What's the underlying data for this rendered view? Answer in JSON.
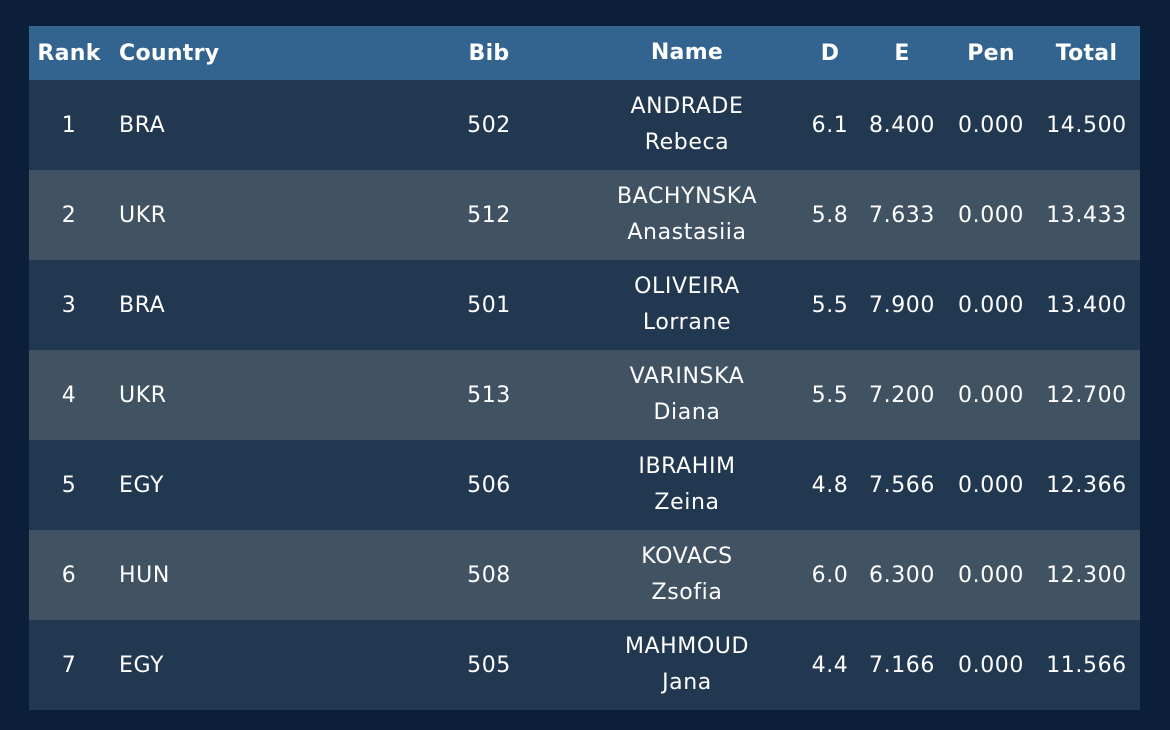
{
  "headers": {
    "rank": "Rank",
    "country": "Country",
    "bib": "Bib",
    "name": "Name",
    "d": "D",
    "e": "E",
    "pen": "Pen",
    "total": "Total"
  },
  "rows": [
    {
      "rank": "1",
      "country": "BRA",
      "bib": "502",
      "surname": "ANDRADE",
      "first": "Rebeca",
      "d": "6.1",
      "e": "8.400",
      "pen": "0.000",
      "total": "14.500"
    },
    {
      "rank": "2",
      "country": "UKR",
      "bib": "512",
      "surname": "BACHYNSKA",
      "first": "Anastasiia",
      "d": "5.8",
      "e": "7.633",
      "pen": "0.000",
      "total": "13.433"
    },
    {
      "rank": "3",
      "country": "BRA",
      "bib": "501",
      "surname": "OLIVEIRA",
      "first": "Lorrane",
      "d": "5.5",
      "e": "7.900",
      "pen": "0.000",
      "total": "13.400"
    },
    {
      "rank": "4",
      "country": "UKR",
      "bib": "513",
      "surname": "VARINSKA",
      "first": "Diana",
      "d": "5.5",
      "e": "7.200",
      "pen": "0.000",
      "total": "12.700"
    },
    {
      "rank": "5",
      "country": "EGY",
      "bib": "506",
      "surname": "IBRAHIM",
      "first": "Zeina",
      "d": "4.8",
      "e": "7.566",
      "pen": "0.000",
      "total": "12.366"
    },
    {
      "rank": "6",
      "country": "HUN",
      "bib": "508",
      "surname": "KOVACS",
      "first": "Zsofia",
      "d": "6.0",
      "e": "6.300",
      "pen": "0.000",
      "total": "12.300"
    },
    {
      "rank": "7",
      "country": "EGY",
      "bib": "505",
      "surname": "MAHMOUD",
      "first": "Jana",
      "d": "4.4",
      "e": "7.166",
      "pen": "0.000",
      "total": "11.566"
    }
  ],
  "colors": {
    "background": "#0b1f3a",
    "header": "#33648f",
    "row_dark": "#213850",
    "row_light": "#415363",
    "text": "#ffffff"
  }
}
